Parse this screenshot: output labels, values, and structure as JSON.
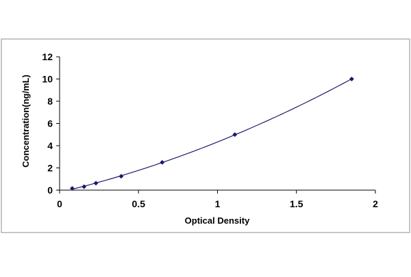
{
  "chart_data": {
    "type": "scatter",
    "title": "",
    "xlabel": "Optical Density",
    "ylabel": "Concentration(ng/mL)",
    "xlim": [
      0,
      2
    ],
    "ylim": [
      0,
      12
    ],
    "x_ticks": [
      "0",
      "0.5",
      "1",
      "1.5",
      "2"
    ],
    "y_ticks": [
      "0",
      "2",
      "4",
      "6",
      "8",
      "10",
      "12"
    ],
    "grid": false,
    "legend": "none",
    "series": [
      {
        "points": [
          {
            "x": 0.08,
            "y": 0.156
          },
          {
            "x": 0.155,
            "y": 0.3125
          },
          {
            "x": 0.23,
            "y": 0.625
          },
          {
            "x": 0.39,
            "y": 1.25
          },
          {
            "x": 0.65,
            "y": 2.5
          },
          {
            "x": 1.11,
            "y": 5
          },
          {
            "x": 1.85,
            "y": 10
          }
        ],
        "fit": "curve",
        "color": "#1a1a6e"
      }
    ]
  }
}
